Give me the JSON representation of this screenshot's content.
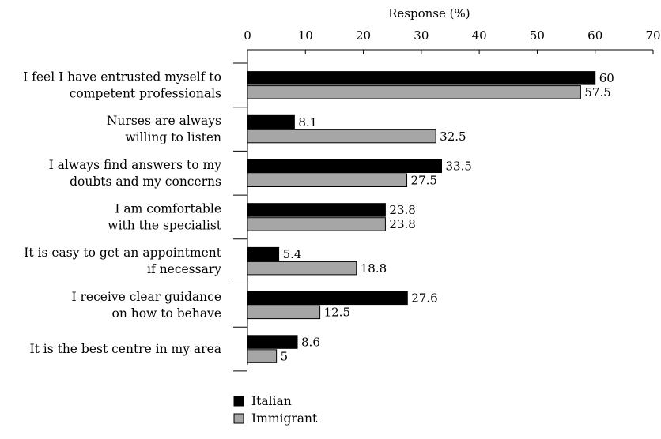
{
  "chart_data": {
    "type": "bar",
    "orientation": "horizontal",
    "xlabel": "Response (%)",
    "xlim": [
      0,
      70
    ],
    "xticks": [
      0,
      10,
      20,
      30,
      40,
      50,
      60,
      70
    ],
    "xaxis_position": "top",
    "grid": false,
    "legend_position": "bottom-center",
    "categories": [
      [
        "I feel I have entrusted myself to",
        "competent professionals"
      ],
      [
        "Nurses are always",
        "willing to listen"
      ],
      [
        "I always find answers to my",
        "doubts and my concerns"
      ],
      [
        "I am comfortable",
        "with the specialist"
      ],
      [
        "It is easy to get an appointment",
        "if necessary"
      ],
      [
        "I receive clear guidance",
        "on how to behave"
      ],
      [
        "It is the best centre in my area"
      ]
    ],
    "series": [
      {
        "name": "Italian",
        "color": "#000000",
        "values": [
          60,
          8.1,
          33.5,
          23.8,
          5.4,
          27.6,
          8.6
        ]
      },
      {
        "name": "Immigrant",
        "color": "#a6a6a6",
        "values": [
          57.5,
          32.5,
          27.5,
          23.8,
          18.8,
          12.5,
          5
        ]
      }
    ]
  }
}
